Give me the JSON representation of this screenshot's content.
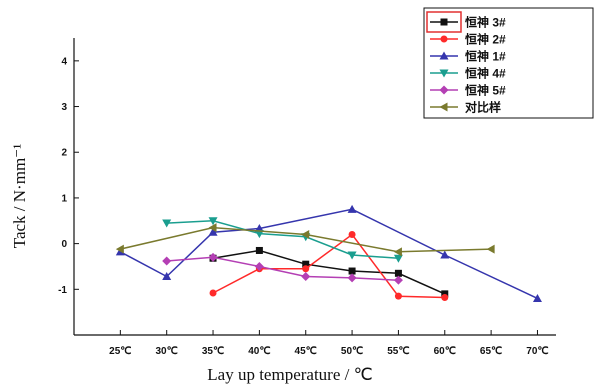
{
  "chart_data": {
    "type": "line",
    "xlabel": "Lay up temperature / ℃",
    "ylabel": "Tack / N·mm⁻¹",
    "categories": [
      "25℃",
      "30℃",
      "35℃",
      "40℃",
      "45℃",
      "50℃",
      "55℃",
      "60℃",
      "65℃",
      "70℃"
    ],
    "x_values": [
      25,
      30,
      35,
      40,
      45,
      50,
      55,
      60,
      65,
      70
    ],
    "xlim": [
      20,
      72
    ],
    "ylim": [
      -2,
      4.5
    ],
    "y_ticks": [
      -1,
      0,
      1,
      2,
      3,
      4
    ],
    "legend_position": "top-right",
    "series": [
      {
        "name": "恒神 3#",
        "color": "#111111",
        "marker": "square",
        "points": [
          [
            35,
            -0.32
          ],
          [
            40,
            -0.15
          ],
          [
            45,
            -0.45
          ],
          [
            50,
            -0.6
          ],
          [
            55,
            -0.65
          ],
          [
            60,
            -1.1
          ]
        ]
      },
      {
        "name": "恒神 2#",
        "color": "#ff2a2a",
        "marker": "circle",
        "points": [
          [
            35,
            -1.08
          ],
          [
            40,
            -0.55
          ],
          [
            45,
            -0.55
          ],
          [
            50,
            0.2
          ],
          [
            55,
            -1.15
          ],
          [
            60,
            -1.18
          ]
        ]
      },
      {
        "name": "恒神 1#",
        "color": "#3535ad",
        "marker": "triangle-up",
        "points": [
          [
            25,
            -0.18
          ],
          [
            35,
            0.25
          ],
          [
            30,
            -0.72
          ],
          [
            40,
            0.33
          ],
          [
            50,
            0.75
          ],
          [
            60,
            -0.25
          ],
          [
            70,
            -1.2
          ]
        ]
      },
      {
        "name": "恒神 4#",
        "color": "#1a9e8f",
        "marker": "triangle-down",
        "points": [
          [
            30,
            0.45
          ],
          [
            35,
            0.5
          ],
          [
            40,
            0.22
          ],
          [
            45,
            0.15
          ],
          [
            50,
            -0.25
          ],
          [
            55,
            -0.32
          ]
        ]
      },
      {
        "name": "恒神 5#",
        "color": "#b43fb4",
        "marker": "diamond",
        "points": [
          [
            30,
            -0.38
          ],
          [
            35,
            -0.3
          ],
          [
            40,
            -0.5
          ],
          [
            45,
            -0.72
          ],
          [
            50,
            -0.75
          ],
          [
            55,
            -0.8
          ]
        ]
      },
      {
        "name": "对比样",
        "color": "#7a7a2e",
        "marker": "triangle-left",
        "points": [
          [
            25,
            -0.12
          ],
          [
            35,
            0.35
          ],
          [
            45,
            0.2
          ],
          [
            55,
            -0.18
          ],
          [
            65,
            -0.12
          ]
        ]
      }
    ]
  }
}
